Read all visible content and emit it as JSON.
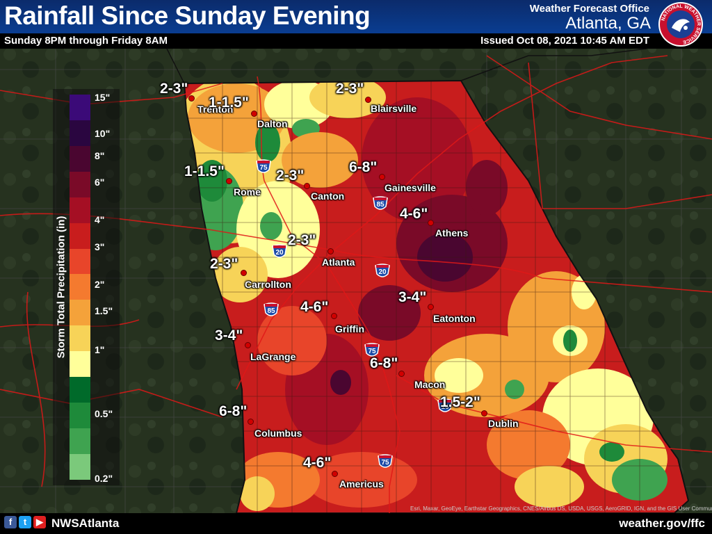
{
  "header": {
    "title": "Rainfall Since Sunday Evening",
    "subtitle": "Sunday 8PM through Friday 8AM",
    "office_label": "Weather Forecast Office",
    "office_city": "Atlanta, GA",
    "issued": "Issued Oct 08, 2021 10:45 AM EDT",
    "logo_text": "NATIONAL WEATHER SERVICE"
  },
  "legend": {
    "title": "Storm Total Precipitation (in)",
    "colors": [
      "#7bc97b",
      "#3fa350",
      "#1e8a3a",
      "#006a2a",
      "#ffff9a",
      "#f7d358",
      "#f4a23a",
      "#f47a2f",
      "#e8452a",
      "#c81d1d",
      "#a50f24",
      "#7a0a28",
      "#4a0630",
      "#2a0640",
      "#3b0a78"
    ],
    "ticks": [
      "15\"",
      "10\"",
      "8\"",
      "6\"",
      "4\"",
      "3\"",
      "2\"",
      "1.5\"",
      "1\"",
      "0.5\"",
      "0.2\""
    ]
  },
  "amount_labels": [
    "2-3\"",
    "1-1.5\"",
    "2-3\"",
    "1-1.5\"",
    "2-3\"",
    "6-8\"",
    "4-6\"",
    "2-3\"",
    "2-3\"",
    "4-6\"",
    "3-4\"",
    "3-4\"",
    "6-8\"",
    "1.5-2\"",
    "6-8\"",
    "4-6\""
  ],
  "cities": [
    "Trenton",
    "Dalton",
    "Blairsville",
    "Rome",
    "Canton",
    "Gainesville",
    "Athens",
    "Atlanta",
    "Carrollton",
    "Griffin",
    "Eatonton",
    "LaGrange",
    "Macon",
    "Dublin",
    "Columbus",
    "Americus"
  ],
  "interstates": [
    "75",
    "85",
    "20",
    "20",
    "85",
    "75",
    "16",
    "75"
  ],
  "attribution": "Esri, Maxar, GeoEye, Earthstar Geographics, CNES/Airbus DS, USDA, USGS, AeroGRID, IGN, and the GIS User Community",
  "footer": {
    "handle": "NWSAtlanta",
    "website": "weather.gov/ffc"
  },
  "colors": {
    "header_blue": "#0a3d91",
    "road_red": "#e01818",
    "city_dot": "#d10000"
  }
}
